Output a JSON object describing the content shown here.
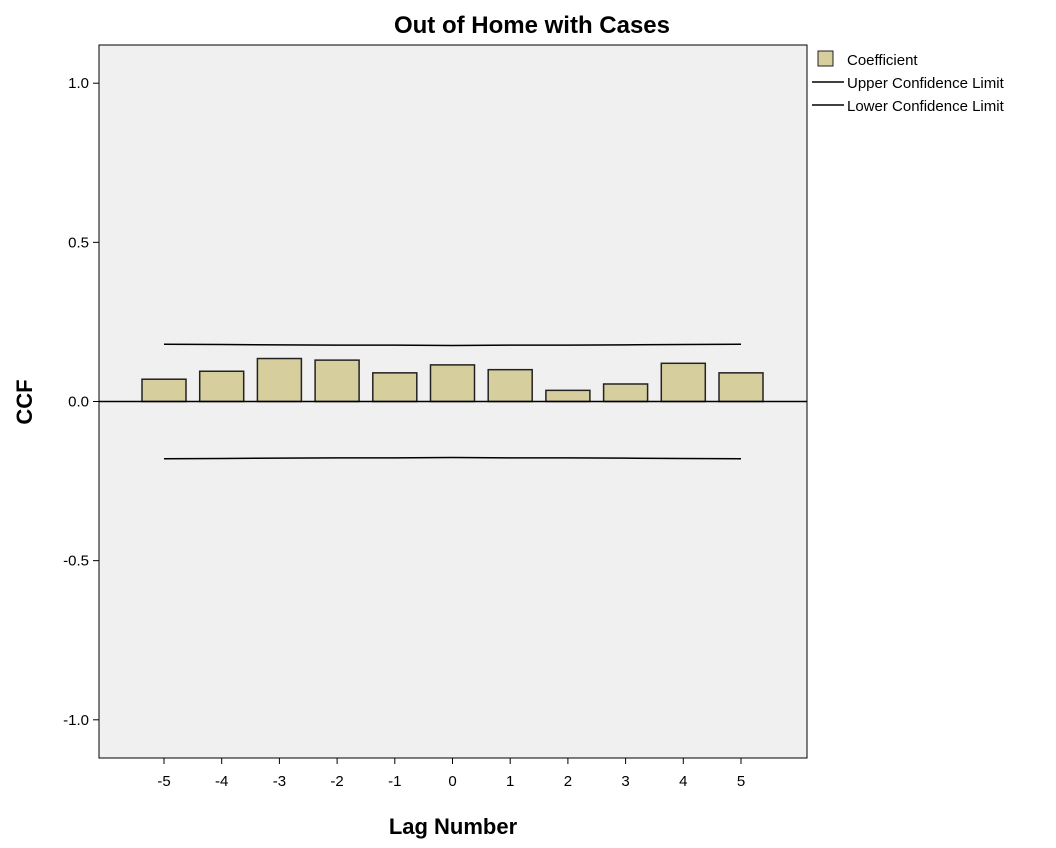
{
  "chart_data": {
    "type": "bar",
    "title": "Out of Home with Cases",
    "xlabel": "Lag Number",
    "ylabel": "CCF",
    "categories": [
      "-5",
      "-4",
      "-3",
      "-2",
      "-1",
      "0",
      "1",
      "2",
      "3",
      "4",
      "5"
    ],
    "series": [
      {
        "name": "Coefficient",
        "values": [
          0.07,
          0.095,
          0.135,
          0.13,
          0.09,
          0.115,
          0.1,
          0.035,
          0.055,
          0.12,
          0.09
        ]
      }
    ],
    "upper_confidence_limit": [
      0.18,
      0.179,
      0.178,
      0.177,
      0.177,
      0.176,
      0.177,
      0.177,
      0.178,
      0.179,
      0.18
    ],
    "lower_confidence_limit": [
      -0.18,
      -0.179,
      -0.178,
      -0.177,
      -0.177,
      -0.176,
      -0.177,
      -0.177,
      -0.178,
      -0.179,
      -0.18
    ],
    "ylim": [
      -1.12,
      1.12
    ],
    "yticks": [
      1.0,
      0.5,
      0.0,
      -0.5,
      -1.0
    ],
    "ytick_labels": [
      "1.0",
      "0.5",
      "0.0",
      "-0.5",
      "-1.0"
    ],
    "legend": {
      "placement": "top-right-outside",
      "entries": [
        "Coefficient",
        "Upper Confidence Limit",
        "Lower Confidence Limit"
      ]
    },
    "grid": false,
    "colors": {
      "bar_fill": "#d6cf9d",
      "bar_stroke": "#222222",
      "plot_background": "#f0f0f0",
      "line": "#000000"
    }
  }
}
